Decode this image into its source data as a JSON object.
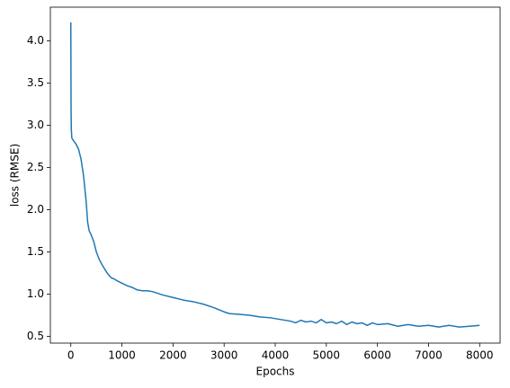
{
  "chart_data": {
    "type": "line",
    "xlabel": "Epochs",
    "ylabel": "loss (RMSE)",
    "x": [
      0,
      5,
      10,
      20,
      50,
      100,
      150,
      200,
      250,
      300,
      330,
      360,
      400,
      450,
      500,
      550,
      600,
      650,
      700,
      750,
      800,
      850,
      900,
      1000,
      1100,
      1200,
      1300,
      1400,
      1500,
      1600,
      1700,
      1800,
      2000,
      2200,
      2400,
      2600,
      2800,
      3000,
      3100,
      3300,
      3500,
      3700,
      3900,
      4100,
      4300,
      4400,
      4500,
      4600,
      4700,
      4800,
      4900,
      5000,
      5100,
      5200,
      5300,
      5400,
      5500,
      5600,
      5700,
      5800,
      5900,
      6000,
      6200,
      6400,
      6600,
      6800,
      7000,
      7200,
      7400,
      7600,
      7800,
      8000
    ],
    "values": [
      4.22,
      3.2,
      2.95,
      2.85,
      2.82,
      2.78,
      2.72,
      2.6,
      2.4,
      2.1,
      1.85,
      1.75,
      1.7,
      1.62,
      1.5,
      1.42,
      1.36,
      1.31,
      1.26,
      1.22,
      1.19,
      1.18,
      1.16,
      1.13,
      1.1,
      1.08,
      1.05,
      1.04,
      1.04,
      1.03,
      1.01,
      0.99,
      0.96,
      0.93,
      0.91,
      0.88,
      0.84,
      0.79,
      0.77,
      0.76,
      0.75,
      0.73,
      0.72,
      0.7,
      0.68,
      0.66,
      0.69,
      0.67,
      0.68,
      0.66,
      0.7,
      0.66,
      0.67,
      0.65,
      0.68,
      0.64,
      0.67,
      0.65,
      0.66,
      0.63,
      0.66,
      0.64,
      0.65,
      0.62,
      0.64,
      0.62,
      0.63,
      0.61,
      0.63,
      0.61,
      0.62,
      0.63
    ],
    "color": "#1f77b4",
    "xlim": [
      -400,
      8400
    ],
    "xticks": [
      0,
      1000,
      2000,
      3000,
      4000,
      5000,
      6000,
      7000,
      8000
    ],
    "ylim": [
      0.42,
      4.4
    ],
    "yticks": [
      0.5,
      {
        "value": 1,
        "label": "1.0"
      },
      1.5,
      {
        "value": 2,
        "label": "2.0"
      },
      2.5,
      {
        "value": 3,
        "label": "3.0"
      },
      3.5,
      {
        "value": 4,
        "label": "4.0"
      }
    ],
    "grid": false
  }
}
